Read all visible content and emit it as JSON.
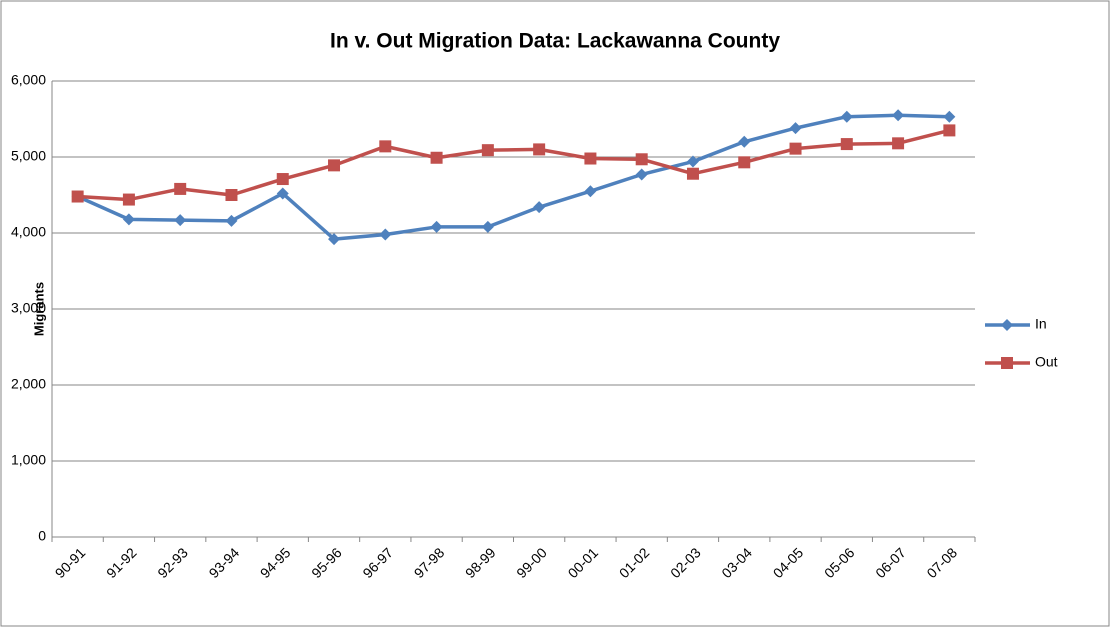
{
  "chart_data": {
    "type": "line",
    "title": "In v. Out Migration Data:  Lackawanna County",
    "y_label": "Migrants",
    "categories": [
      "90-91",
      "91-92",
      "92-93",
      "93-94",
      "94-95",
      "95-96",
      "96-97",
      "97-98",
      "98-99",
      "99-00",
      "00-01",
      "01-02",
      "02-03",
      "03-04",
      "04-05",
      "05-06",
      "06-07",
      "07-08"
    ],
    "series": [
      {
        "name": "In",
        "color": "#4f81bd",
        "marker": "diamond",
        "values": [
          4480,
          4180,
          4170,
          4160,
          4520,
          3920,
          3980,
          4080,
          4080,
          4340,
          4550,
          4770,
          4940,
          5200,
          5380,
          5530,
          5550,
          5530
        ]
      },
      {
        "name": "Out",
        "color": "#c0504d",
        "marker": "square",
        "values": [
          4480,
          4440,
          4580,
          4500,
          4710,
          4890,
          5140,
          4990,
          5090,
          5100,
          4980,
          4970,
          4780,
          4930,
          5110,
          5170,
          5180,
          5350
        ]
      }
    ],
    "ylim": [
      0,
      6000
    ],
    "yticks": [
      0,
      {
        "value": 1000,
        "label": "1,000"
      },
      {
        "value": 2000,
        "label": "2,000"
      },
      {
        "value": 3000,
        "label": "3,000"
      },
      {
        "value": 4000,
        "label": "4,000"
      },
      {
        "value": 5000,
        "label": "5,000"
      },
      {
        "value": 6000,
        "label": "6,000"
      }
    ],
    "grid": true,
    "legend": "right"
  }
}
